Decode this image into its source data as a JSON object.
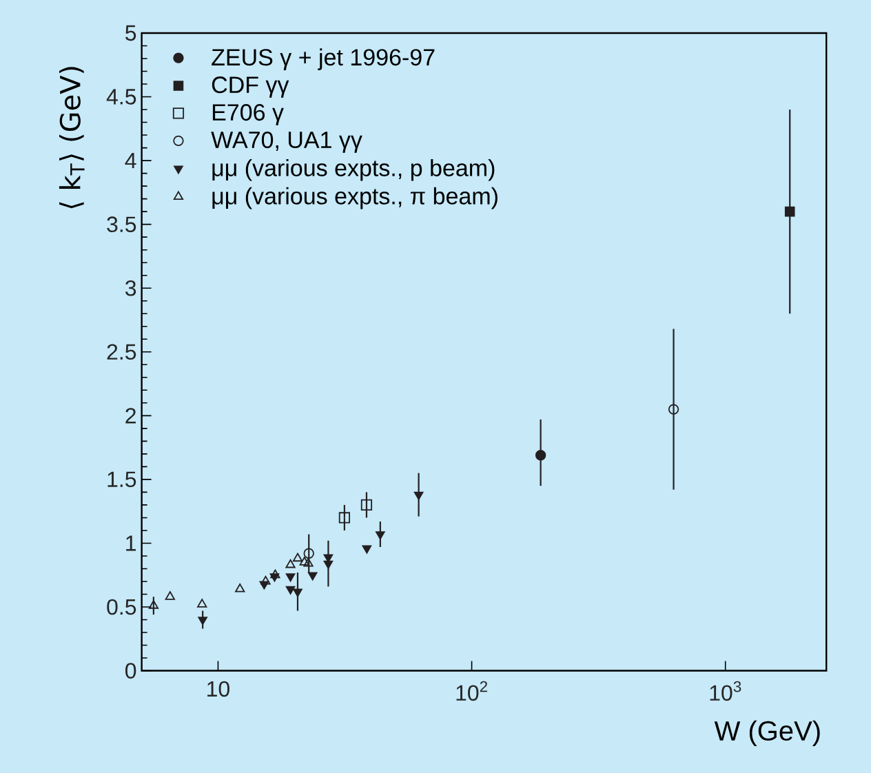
{
  "chart_data": {
    "type": "scatter",
    "xlabel": "W   (GeV)",
    "ylabel": "⟨ k$_{T}$⟩    (GeV)",
    "log": "x",
    "xlim": [
      5,
      2500
    ],
    "ylim": [
      0,
      5
    ],
    "xticks": [
      10,
      {
        "value": 100,
        "label": "10$^{2}$"
      },
      {
        "value": 1000,
        "label": "10$^{3}$"
      }
    ],
    "yticks": [
      0,
      0.5,
      1,
      1.5,
      2,
      2.5,
      3,
      3.5,
      4,
      4.5,
      5
    ],
    "grid": false,
    "legend": "top left",
    "series": [
      {
        "name": "ZEUS γ + jet 1996-97",
        "color": "#231f20",
        "marker": "circle",
        "x": [
          187
        ],
        "values": [
          1.69
        ],
        "errors": [
          [
            1.45,
            1.97
          ]
        ]
      },
      {
        "name": "CDF γγ",
        "color": "#231f20",
        "marker": "square",
        "x": [
          1795
        ],
        "values": [
          3.6
        ],
        "errors": [
          0.8
        ]
      },
      {
        "name": "E706 γ",
        "color": "#231f20",
        "marker": "square-open",
        "x": [
          31.5,
          38.5
        ],
        "values": [
          1.2,
          1.3
        ],
        "errors": [
          0.1,
          0.1
        ]
      },
      {
        "name": "WA70, UA1  γγ",
        "color": "#231f20",
        "marker": "circle-open",
        "x": [
          22.8,
          625
        ],
        "values": [
          0.92,
          2.05
        ],
        "errors": [
          0.15,
          0.63
        ]
      },
      {
        "name": "μμ (various expts., p beam)",
        "color": "#231f20",
        "marker": "triangle-down",
        "x": [
          8.7,
          15.2,
          16.7,
          19.3,
          19.3,
          20.6,
          23.6,
          27.2,
          27.2,
          38.6,
          43.6,
          61.8
        ],
        "values": [
          0.4,
          0.68,
          0.74,
          0.74,
          0.64,
          0.62,
          0.75,
          0.89,
          0.84,
          0.96,
          1.07,
          1.38
        ],
        "errors": [
          0.07,
          null,
          null,
          null,
          null,
          0.15,
          null,
          null,
          0.18,
          null,
          0.1,
          0.17
        ]
      },
      {
        "name": "μμ  (various expts.,  π beam)",
        "color": "#231f20",
        "marker": "triangle-open",
        "x": [
          5.57,
          6.47,
          8.65,
          12.2,
          15.4,
          16.8,
          19.3,
          20.6,
          21.9,
          22.7
        ],
        "values": [
          0.51,
          0.58,
          0.52,
          0.64,
          0.7,
          0.75,
          0.83,
          0.88,
          0.85,
          0.84
        ],
        "errors": [
          0.07,
          null,
          null,
          null,
          null,
          null,
          null,
          null,
          null,
          null
        ]
      }
    ]
  }
}
